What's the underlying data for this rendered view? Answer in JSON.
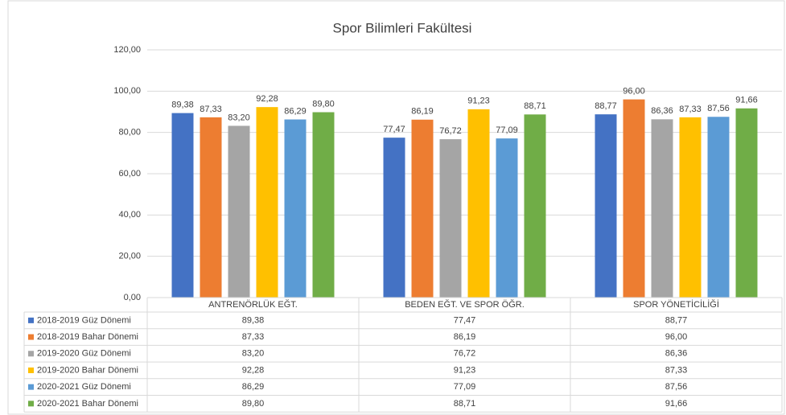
{
  "chart_data": {
    "type": "bar",
    "title": "Spor Bilimleri Fakültesi",
    "categories": [
      "ANTRENÖRLÜK EĞT.",
      "BEDEN EĞT. VE SPOR ÖĞR.",
      "SPOR YÖNETİCİLİĞİ"
    ],
    "series": [
      {
        "name": "2018-2019 Güz Dönemi",
        "color": "#4472c4",
        "values": [
          89.38,
          77.47,
          88.77
        ],
        "value_labels": [
          "89,38",
          "77,47",
          "88,77"
        ]
      },
      {
        "name": "2018-2019 Bahar Dönemi",
        "color": "#ed7d31",
        "values": [
          87.33,
          86.19,
          96.0
        ],
        "value_labels": [
          "87,33",
          "86,19",
          "96,00"
        ]
      },
      {
        "name": "2019-2020 Güz Dönemi",
        "color": "#a5a5a5",
        "values": [
          83.2,
          76.72,
          86.36
        ],
        "value_labels": [
          "83,20",
          "76,72",
          "86,36"
        ]
      },
      {
        "name": "2019-2020 Bahar Dönemi",
        "color": "#ffc000",
        "values": [
          92.28,
          91.23,
          87.33
        ],
        "value_labels": [
          "92,28",
          "91,23",
          "87,33"
        ]
      },
      {
        "name": "2020-2021 Güz Dönemi",
        "color": "#5b9bd5",
        "values": [
          86.29,
          77.09,
          87.56
        ],
        "value_labels": [
          "86,29",
          "77,09",
          "87,56"
        ]
      },
      {
        "name": "2020-2021 Bahar Dönemi",
        "color": "#70ad47",
        "values": [
          89.8,
          88.71,
          91.66
        ],
        "value_labels": [
          "89,80",
          "88,71",
          "91,66"
        ]
      }
    ],
    "ylim": [
      0,
      120
    ],
    "yticks": [
      {
        "value": 0,
        "label": "0,00"
      },
      {
        "value": 20,
        "label": "20,00"
      },
      {
        "value": 40,
        "label": "40,00"
      },
      {
        "value": 60,
        "label": "60,00"
      },
      {
        "value": 80,
        "label": "80,00"
      },
      {
        "value": 100,
        "label": "100,00"
      },
      {
        "value": 120,
        "label": "120,00"
      }
    ],
    "grid": true
  }
}
